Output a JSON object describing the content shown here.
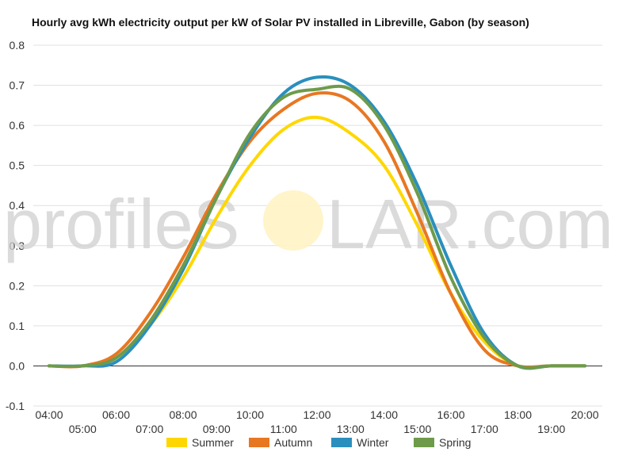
{
  "chart_data": {
    "type": "line",
    "title": "Hourly avg kWh electricity output per kW of Solar PV installed in Libreville, Gabon (by season)",
    "xlabel": "",
    "ylabel": "",
    "x": [
      "04:00",
      "05:00",
      "06:00",
      "07:00",
      "08:00",
      "09:00",
      "10:00",
      "11:00",
      "12:00",
      "13:00",
      "14:00",
      "15:00",
      "16:00",
      "17:00",
      "18:00",
      "19:00",
      "20:00"
    ],
    "ylim": [
      -0.1,
      0.8
    ],
    "yticks": [
      "0.8",
      "0.7",
      "0.6",
      "0.5",
      "0.4",
      "0.3",
      "0.2",
      "0.1",
      "0.0",
      "-0.1"
    ],
    "grid": true,
    "legend_position": "bottom",
    "series": [
      {
        "name": "Summer",
        "color": "#FFD700",
        "values": [
          0,
          0,
          0.02,
          0.1,
          0.22,
          0.37,
          0.5,
          0.59,
          0.62,
          0.58,
          0.5,
          0.35,
          0.18,
          0.06,
          0,
          0,
          0
        ]
      },
      {
        "name": "Autumn",
        "color": "#E87722",
        "values": [
          0,
          0,
          0.03,
          0.13,
          0.27,
          0.43,
          0.56,
          0.64,
          0.68,
          0.66,
          0.56,
          0.38,
          0.18,
          0.04,
          0,
          0,
          0
        ]
      },
      {
        "name": "Winter",
        "color": "#2A8FBD",
        "values": [
          0,
          0,
          0.01,
          0.1,
          0.24,
          0.42,
          0.57,
          0.68,
          0.72,
          0.7,
          0.61,
          0.45,
          0.25,
          0.08,
          0,
          0,
          0
        ]
      },
      {
        "name": "Spring",
        "color": "#6E9B4A",
        "values": [
          0,
          0,
          0.02,
          0.11,
          0.25,
          0.42,
          0.58,
          0.67,
          0.69,
          0.69,
          0.6,
          0.43,
          0.22,
          0.07,
          0,
          0,
          0
        ]
      }
    ]
  },
  "watermark": {
    "before": "profileS",
    "after": "LAR.com"
  }
}
